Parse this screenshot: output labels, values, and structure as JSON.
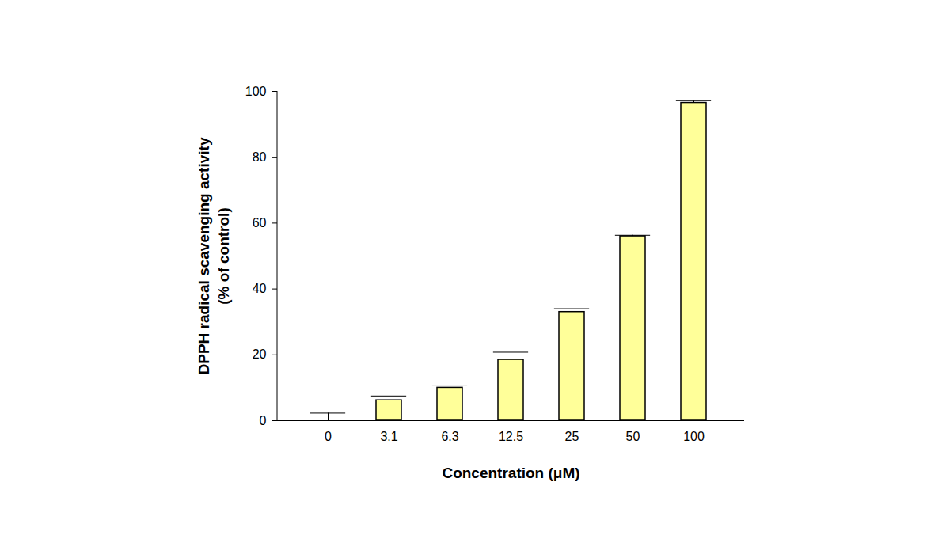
{
  "chart_data": {
    "type": "bar",
    "xlabel": "Concentration (μM)",
    "ylabel": [
      "DPPH radical scavenging activity",
      "(% of control)"
    ],
    "categories": [
      "0",
      "3.1",
      "6.3",
      "12.5",
      "25",
      "50",
      "100"
    ],
    "values": [
      0,
      6.2,
      10,
      18.5,
      33,
      56,
      96.5
    ],
    "errors": [
      2.3,
      1.3,
      0.8,
      2.3,
      1.0,
      0.3,
      0.8
    ],
    "color": "#ffff99",
    "ylim": [
      0,
      100
    ],
    "yticks": [
      0,
      20,
      40,
      60,
      80,
      100
    ],
    "grid": false
  }
}
